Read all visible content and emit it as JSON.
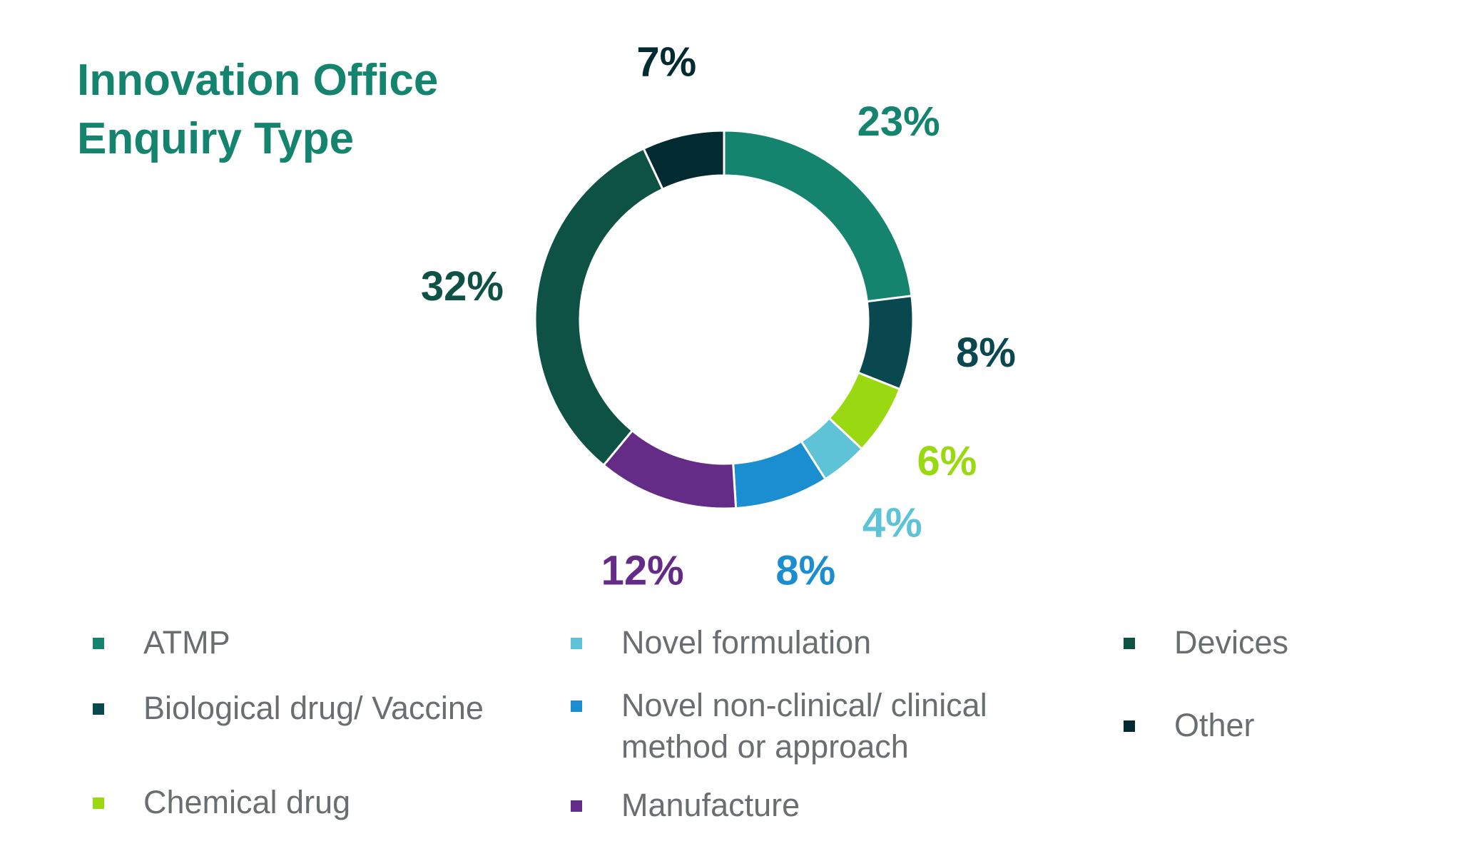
{
  "title": {
    "line1": "Innovation Office",
    "line2": "Enquiry Type"
  },
  "chart_data": {
    "type": "pie",
    "style": "donut",
    "title": "Innovation Office Enquiry Type",
    "legend_position": "bottom",
    "slices": [
      {
        "label": "ATMP",
        "value": 23,
        "value_label": "23%",
        "color": "#14846F"
      },
      {
        "label": "Biological drug/ Vaccine",
        "value": 8,
        "value_label": "8%",
        "color": "#0A4850"
      },
      {
        "label": "Chemical drug",
        "value": 6,
        "value_label": "6%",
        "color": "#9AD811"
      },
      {
        "label": "Novel formulation",
        "value": 4,
        "value_label": "4%",
        "color": "#5EC3D7"
      },
      {
        "label": "Novel non-clinical/ clinical method or approach",
        "value": 8,
        "value_label": "8%",
        "color": "#1B8ED1"
      },
      {
        "label": "Manufacture",
        "value": 12,
        "value_label": "12%",
        "color": "#642C86"
      },
      {
        "label": "Devices",
        "value": 32,
        "value_label": "32%",
        "color": "#0D5245"
      },
      {
        "label": "Other",
        "value": 7,
        "value_label": "7%",
        "color": "#012A31"
      }
    ]
  }
}
